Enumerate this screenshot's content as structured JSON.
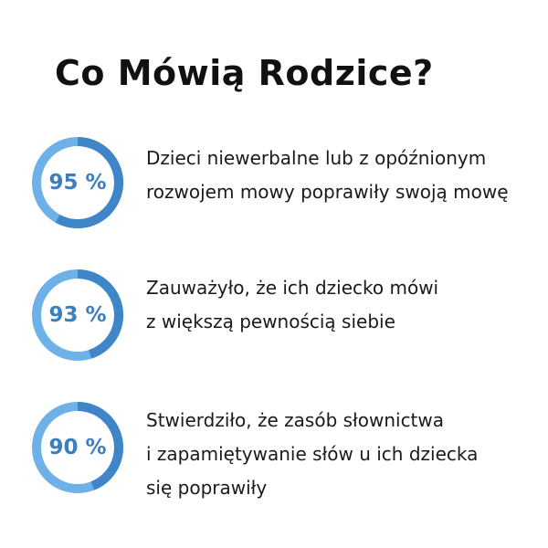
{
  "title": "Co Mówią Rodzice?",
  "colors": {
    "ring_dark": "#3f86c8",
    "ring_light": "#6db1e8",
    "percent_text": "#3b7fc0"
  },
  "stats": [
    {
      "percent": "95 %",
      "ring_dark_fraction": 0.58,
      "text": "Dzieci niewerbalne lub z opóźnionym\nrozwojem mowy poprawiły swoją mowę"
    },
    {
      "percent": "93 %",
      "ring_dark_fraction": 0.45,
      "text": "Zauważyło, że ich dziecko mówi\nz większą pewnością siebie"
    },
    {
      "percent": "90 %",
      "ring_dark_fraction": 0.44,
      "text": "Stwierdziło, że zasób słownictwa\ni zapamiętywanie słów u ich dziecka\nsię poprawiły"
    }
  ]
}
